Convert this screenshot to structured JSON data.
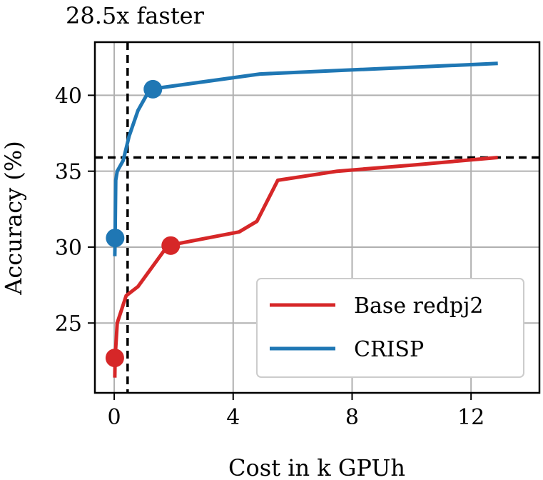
{
  "chart_data": {
    "type": "line",
    "annotation": "28.5x faster",
    "xlabel": "Cost in k GPUh",
    "ylabel": "Accuracy (%)",
    "xlim": [
      -0.65,
      14.3
    ],
    "ylim": [
      20.4,
      43.5
    ],
    "xticks": [
      0,
      4,
      8,
      12
    ],
    "yticks": [
      25,
      30,
      35,
      40
    ],
    "grid": true,
    "legend_position": "lower-right",
    "reference_lines": {
      "x": 0.45,
      "y": 35.9
    },
    "series": [
      {
        "name": "Base redpj2",
        "color": "#d62728",
        "x": [
          0.02,
          0.03,
          0.1,
          0.4,
          0.8,
          1.8,
          4.2,
          4.8,
          5.5,
          7.5,
          10.0,
          12.9
        ],
        "y": [
          21.4,
          22.7,
          25.0,
          26.8,
          27.4,
          30.1,
          31.0,
          31.7,
          34.4,
          35.0,
          35.4,
          35.9
        ],
        "markers": [
          {
            "x": 0.02,
            "y": 22.7
          },
          {
            "x": 1.9,
            "y": 30.1
          }
        ]
      },
      {
        "name": "CRISP",
        "color": "#1f77b4",
        "x": [
          0.02,
          0.03,
          0.05,
          0.1,
          0.3,
          0.5,
          0.8,
          1.2,
          4.9,
          12.9
        ],
        "y": [
          29.4,
          30.6,
          34.4,
          35.0,
          35.7,
          37.3,
          39.0,
          40.4,
          41.4,
          42.1
        ],
        "markers": [
          {
            "x": 0.03,
            "y": 30.6
          },
          {
            "x": 1.3,
            "y": 40.4
          }
        ]
      }
    ]
  }
}
